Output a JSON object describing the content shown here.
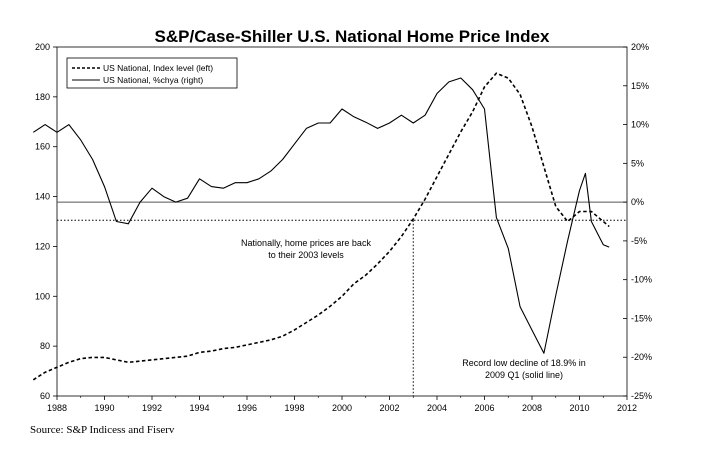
{
  "chart_data": {
    "type": "line",
    "title": "S&P/Case-Shiller U.S. National Home Price Index",
    "xlim": [
      1988,
      2012
    ],
    "ylim_left": [
      60,
      200
    ],
    "ylim_right": [
      -25,
      20
    ],
    "x_ticks": [
      "1988",
      "1990",
      "1992",
      "1994",
      "1996",
      "1998",
      "2000",
      "2002",
      "2004",
      "2006",
      "2008",
      "2010",
      "2012"
    ],
    "y_left_ticks": [
      "60",
      "80",
      "100",
      "120",
      "140",
      "160",
      "180",
      "200"
    ],
    "y_right_ticks": [
      "-25%",
      "-20%",
      "-15%",
      "-10%",
      "-5%",
      "0%",
      "5%",
      "10%",
      "15%",
      "20%"
    ],
    "legend_position": "top-left",
    "series": [
      {
        "name": "US National, Index level (left)",
        "axis": "left",
        "style": "dashed",
        "x": [
          1987.0,
          1987.5,
          1988.0,
          1988.5,
          1989.0,
          1989.5,
          1990.0,
          1990.5,
          1991.0,
          1991.5,
          1992.0,
          1992.5,
          1993.0,
          1993.5,
          1994.0,
          1994.5,
          1995.0,
          1995.5,
          1996.0,
          1996.5,
          1997.0,
          1997.5,
          1998.0,
          1998.5,
          1999.0,
          1999.5,
          2000.0,
          2000.5,
          2001.0,
          2001.5,
          2002.0,
          2002.5,
          2003.0,
          2003.5,
          2004.0,
          2004.5,
          2005.0,
          2005.5,
          2006.0,
          2006.5,
          2007.0,
          2007.5,
          2008.0,
          2008.5,
          2009.0,
          2009.5,
          2010.0,
          2010.5,
          2011.0,
          2011.25
        ],
        "values": [
          66.5,
          69.5,
          71.5,
          73.5,
          75,
          75.5,
          75.5,
          74.5,
          73.5,
          74,
          74.5,
          75,
          75.5,
          76,
          77.5,
          78,
          79,
          79.5,
          80.5,
          81.5,
          82.5,
          84,
          86.5,
          89.5,
          92.5,
          96,
          100,
          105,
          108.5,
          113,
          118,
          124,
          131,
          139,
          148,
          157,
          166,
          174,
          184,
          189.5,
          187.5,
          181,
          168,
          152,
          136,
          130,
          134,
          134,
          130,
          128
        ]
      },
      {
        "name": "US National, %chya (right)",
        "axis": "right",
        "style": "solid",
        "x": [
          1987.0,
          1987.5,
          1988.0,
          1988.5,
          1989.0,
          1989.5,
          1990.0,
          1990.5,
          1991.0,
          1991.5,
          1992.0,
          1992.5,
          1993.0,
          1993.5,
          1994.0,
          1994.5,
          1995.0,
          1995.5,
          1996.0,
          1996.5,
          1997.0,
          1997.5,
          1998.0,
          1998.5,
          1999.0,
          1999.5,
          2000.0,
          2000.5,
          2001.0,
          2001.5,
          2002.0,
          2002.5,
          2003.0,
          2003.5,
          2004.0,
          2004.5,
          2005.0,
          2005.5,
          2006.0,
          2006.25,
          2006.5,
          2007.0,
          2007.5,
          2008.0,
          2008.5,
          2009.0,
          2009.5,
          2010.0,
          2010.25,
          2010.5,
          2011.0,
          2011.25
        ],
        "values": [
          9,
          10,
          9,
          10,
          8,
          5.5,
          2,
          -2.5,
          -2.8,
          0,
          1.8,
          0.7,
          0,
          0.5,
          3,
          2,
          1.8,
          2.5,
          2.5,
          3,
          4,
          5.5,
          7.5,
          9.5,
          10.2,
          10.2,
          12,
          11,
          10.3,
          9.5,
          10.2,
          11.2,
          10.2,
          11.2,
          14,
          15.5,
          16,
          14.5,
          12,
          5,
          -2,
          -6,
          -13.5,
          -16.5,
          -19.5,
          -12,
          -5,
          1.5,
          3.7,
          -2.5,
          -5.5,
          -5.8
        ]
      }
    ],
    "reference_lines": [
      {
        "axis": "right",
        "value": 0,
        "style": "solid"
      },
      {
        "axis": "left",
        "value": 130.5,
        "style": "dotted"
      },
      {
        "axis": "x",
        "value": 2003.0,
        "style": "dotted"
      }
    ],
    "annotations": [
      {
        "lines": [
          "Nationally, home prices are back",
          "to their 2003 levels"
        ]
      },
      {
        "lines": [
          "Record low decline of 18.9% in",
          "2009 Q1 (solid line)"
        ]
      }
    ]
  },
  "source_text": "Source: S&P Indicess and Fiserv"
}
